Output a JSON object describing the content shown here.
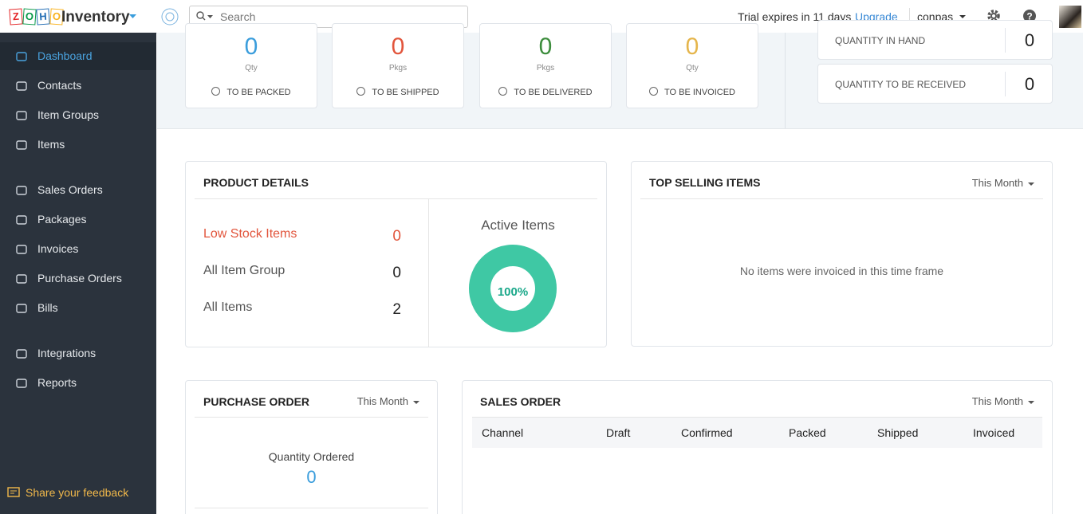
{
  "header": {
    "logo_letters": [
      "Z",
      "O",
      "H",
      "O"
    ],
    "app_name": "Inventory",
    "search_placeholder": "Search",
    "trial_text": "Trial expires in 11 days",
    "upgrade": "Upgrade",
    "user": "conpas"
  },
  "sidebar": {
    "items": [
      "Dashboard",
      "Contacts",
      "Item Groups",
      "Items",
      "Sales Orders",
      "Packages",
      "Invoices",
      "Purchase Orders",
      "Bills",
      "Integrations",
      "Reports"
    ],
    "active": "Dashboard",
    "feedback": "Share your feedback"
  },
  "activity": [
    {
      "value": "0",
      "unit": "Qty",
      "label": "TO BE PACKED",
      "color": "#3a9ddc"
    },
    {
      "value": "0",
      "unit": "Pkgs",
      "label": "TO BE SHIPPED",
      "color": "#e2553c"
    },
    {
      "value": "0",
      "unit": "Pkgs",
      "label": "TO BE DELIVERED",
      "color": "#3d8d3d"
    },
    {
      "value": "0",
      "unit": "Qty",
      "label": "TO BE INVOICED",
      "color": "#e5b54b"
    }
  ],
  "inventory_summary": [
    {
      "label": "QUANTITY IN HAND",
      "value": "0"
    },
    {
      "label": "QUANTITY TO BE RECEIVED",
      "value": "0"
    }
  ],
  "product_details": {
    "title": "PRODUCT DETAILS",
    "rows": [
      {
        "label": "Low Stock Items",
        "value": "0"
      },
      {
        "label": "All Item Group",
        "value": "0"
      },
      {
        "label": "All Items",
        "value": "2"
      }
    ],
    "active_items": {
      "title": "Active Items",
      "percent": 100,
      "percent_label": "100%"
    }
  },
  "top_selling": {
    "title": "TOP SELLING ITEMS",
    "period": "This Month",
    "empty": "No items were invoiced in this time frame"
  },
  "purchase_order": {
    "title": "PURCHASE ORDER",
    "period": "This Month",
    "label": "Quantity Ordered",
    "value": "0"
  },
  "sales_order": {
    "title": "SALES ORDER",
    "period": "This Month",
    "columns": [
      "Channel",
      "Draft",
      "Confirmed",
      "Packed",
      "Shipped",
      "Invoiced"
    ]
  }
}
